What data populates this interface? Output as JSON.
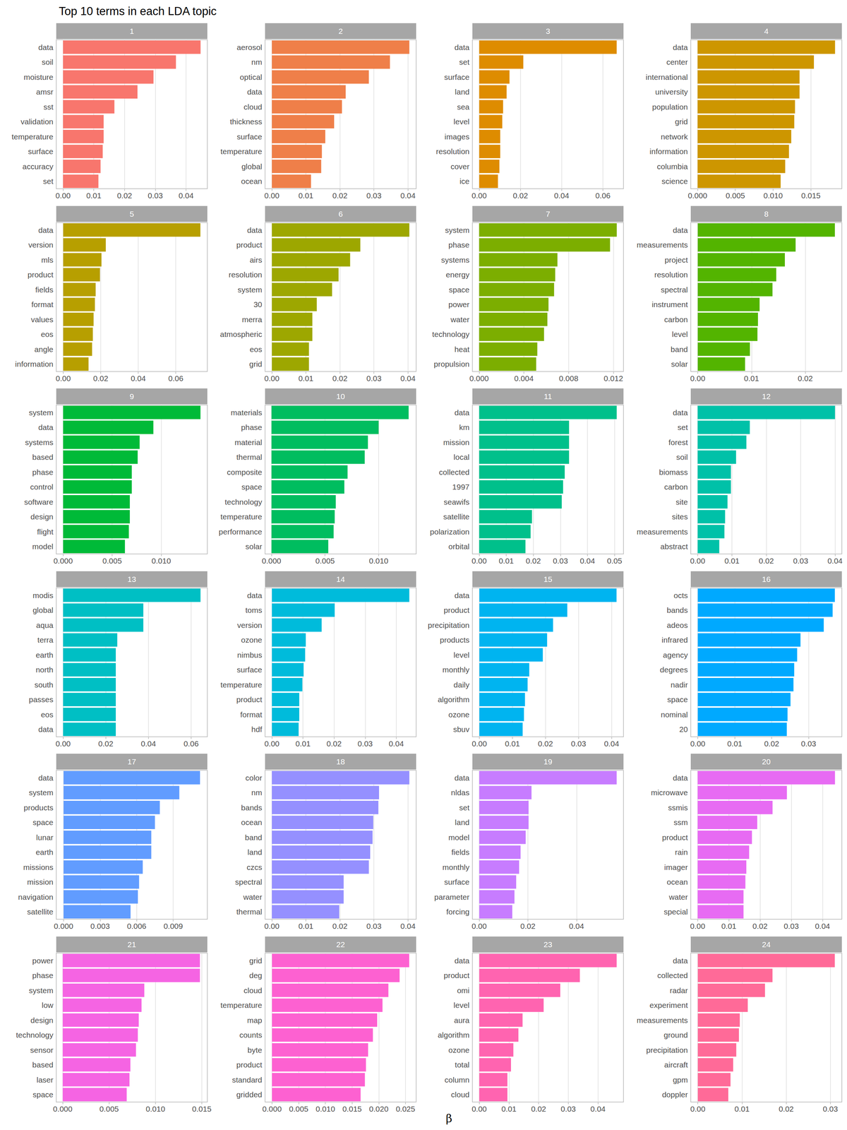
{
  "chart_data": {
    "type": "bar",
    "title": "Top 10 terms in each LDA topic",
    "x_label": "β",
    "orientation": "horizontal",
    "grid": true,
    "panels": [
      {
        "title": "1",
        "color": "#F8766D",
        "categories": [
          "data",
          "soil",
          "moisture",
          "amsr",
          "sst",
          "validation",
          "temperature",
          "surface",
          "accuracy",
          "set"
        ],
        "values": [
          0.0447,
          0.0367,
          0.0294,
          0.0242,
          0.0167,
          0.0132,
          0.0132,
          0.0129,
          0.0122,
          0.0115
        ],
        "xlim": [
          -0.0022,
          0.0469
        ],
        "xticks": [
          {
            "value": 0,
            "label": "0.00"
          },
          0.01,
          0.02,
          0.03,
          0.04
        ]
      },
      {
        "title": "2",
        "color": "#EF7F49",
        "categories": [
          "aerosol",
          "nm",
          "optical",
          "data",
          "cloud",
          "thickness",
          "surface",
          "temperature",
          "global",
          "ocean"
        ],
        "values": [
          0.0404,
          0.0347,
          0.0285,
          0.0217,
          0.0206,
          0.0183,
          0.0157,
          0.0147,
          0.0145,
          0.0115
        ],
        "xlim": [
          -0.002,
          0.0424
        ],
        "xticks": [
          {
            "value": 0,
            "label": "0.00"
          },
          0.01,
          0.02,
          0.03,
          0.04
        ]
      },
      {
        "title": "3",
        "color": "#DE8C00",
        "categories": [
          "data",
          "set",
          "surface",
          "land",
          "sea",
          "level",
          "images",
          "resolution",
          "cover",
          "ice"
        ],
        "values": [
          0.0667,
          0.0214,
          0.0147,
          0.0133,
          0.0116,
          0.0112,
          0.0102,
          0.0102,
          0.0098,
          0.0091
        ],
        "xlim": [
          -0.0033,
          0.07
        ],
        "xticks": [
          {
            "value": 0,
            "label": "0.00"
          },
          0.02,
          0.04,
          0.06
        ]
      },
      {
        "title": "4",
        "color": "#CD9600",
        "categories": [
          "data",
          "center",
          "international",
          "university",
          "population",
          "grid",
          "network",
          "information",
          "columbia",
          "science"
        ],
        "values": [
          0.0182,
          0.0154,
          0.0135,
          0.0135,
          0.0129,
          0.0128,
          0.0124,
          0.0121,
          0.0116,
          0.011
        ],
        "xlim": [
          -0.0009,
          0.0191
        ],
        "xticks": [
          {
            "value": 0,
            "label": "0.000"
          },
          0.005,
          {
            "value": 0.01,
            "label": "0.010"
          },
          0.015
        ]
      },
      {
        "title": "5",
        "color": "#B79F00",
        "categories": [
          "data",
          "version",
          "mls",
          "product",
          "fields",
          "format",
          "values",
          "eos",
          "angle",
          "information"
        ],
        "values": [
          0.0731,
          0.0227,
          0.0204,
          0.0196,
          0.0173,
          0.0169,
          0.0162,
          0.0158,
          0.0154,
          0.0135
        ],
        "xlim": [
          -0.0037,
          0.0768
        ],
        "xticks": [
          {
            "value": 0,
            "label": "0.00"
          },
          0.02,
          0.04,
          0.06
        ]
      },
      {
        "title": "6",
        "color": "#9DA700",
        "categories": [
          "data",
          "product",
          "airs",
          "resolution",
          "system",
          "30",
          "merra",
          "atmospheric",
          "eos",
          "grid"
        ],
        "values": [
          0.0404,
          0.026,
          0.023,
          0.0196,
          0.0177,
          0.0132,
          0.0119,
          0.0119,
          0.0109,
          0.0109
        ],
        "xlim": [
          -0.002,
          0.0424
        ],
        "xticks": [
          {
            "value": 0,
            "label": "0.00"
          },
          0.01,
          0.02,
          0.03,
          0.04
        ]
      },
      {
        "title": "7",
        "color": "#7CAE00",
        "categories": [
          "system",
          "phase",
          "systems",
          "energy",
          "space",
          "power",
          "water",
          "technology",
          "heat",
          "propulsion"
        ],
        "values": [
          0.0123,
          0.0117,
          0.007,
          0.0068,
          0.0067,
          0.0062,
          0.0061,
          0.0058,
          0.0052,
          0.0051
        ],
        "xlim": [
          -0.0006,
          0.0129
        ],
        "xticks": [
          {
            "value": 0,
            "label": "0.000"
          },
          0.004,
          0.008,
          0.012
        ]
      },
      {
        "title": "8",
        "color": "#53B400",
        "categories": [
          "data",
          "measurements",
          "project",
          "resolution",
          "spectral",
          "instrument",
          "carbon",
          "level",
          "band",
          "solar"
        ],
        "values": [
          0.0255,
          0.0182,
          0.0162,
          0.0146,
          0.0139,
          0.0115,
          0.0112,
          0.0111,
          0.0097,
          0.0088
        ],
        "xlim": [
          -0.0013,
          0.0268
        ],
        "xticks": [
          {
            "value": 0,
            "label": "0.00"
          },
          0.01,
          0.02
        ]
      },
      {
        "title": "9",
        "color": "#00BA38",
        "categories": [
          "system",
          "data",
          "systems",
          "based",
          "phase",
          "control",
          "software",
          "design",
          "flight",
          "model"
        ],
        "values": [
          0.014,
          0.0092,
          0.0078,
          0.0076,
          0.007,
          0.007,
          0.0068,
          0.0068,
          0.0067,
          0.0063
        ],
        "xlim": [
          -0.0007,
          0.0147
        ],
        "xticks": [
          {
            "value": 0,
            "label": "0.000"
          },
          0.005,
          {
            "value": 0.01,
            "label": "0.010"
          }
        ]
      },
      {
        "title": "10",
        "color": "#00BD5F",
        "categories": [
          "materials",
          "phase",
          "material",
          "thermal",
          "composite",
          "space",
          "technology",
          "temperature",
          "performance",
          "solar"
        ],
        "values": [
          0.0128,
          0.01,
          0.009,
          0.0087,
          0.0071,
          0.0068,
          0.006,
          0.0059,
          0.0058,
          0.0053
        ],
        "xlim": [
          -0.0006,
          0.0135
        ],
        "xticks": [
          {
            "value": 0,
            "label": "0.000"
          },
          0.005,
          {
            "value": 0.01,
            "label": "0.010"
          }
        ]
      },
      {
        "title": "11",
        "color": "#00C08B",
        "categories": [
          "data",
          "km",
          "mission",
          "local",
          "collected",
          "1997",
          "seawifs",
          "satellite",
          "polarization",
          "orbital"
        ],
        "values": [
          0.0508,
          0.0332,
          0.0332,
          0.0332,
          0.0316,
          0.031,
          0.0305,
          0.0195,
          0.019,
          0.0171
        ],
        "xlim": [
          -0.0025,
          0.0533
        ],
        "xticks": [
          {
            "value": 0,
            "label": "0.00"
          },
          0.01,
          0.02,
          0.03,
          0.04,
          0.05
        ]
      },
      {
        "title": "12",
        "color": "#00C1A8",
        "categories": [
          "data",
          "set",
          "forest",
          "soil",
          "biomass",
          "carbon",
          "site",
          "sites",
          "measurements",
          "abstract"
        ],
        "values": [
          0.04,
          0.0152,
          0.0142,
          0.0112,
          0.0097,
          0.0097,
          0.0087,
          0.008,
          0.0078,
          0.0063
        ],
        "xlim": [
          -0.002,
          0.042
        ],
        "xticks": [
          {
            "value": 0,
            "label": "0.00"
          },
          0.01,
          0.02,
          0.03,
          0.04
        ]
      },
      {
        "title": "13",
        "color": "#00BFC4",
        "categories": [
          "modis",
          "global",
          "aqua",
          "terra",
          "earth",
          "north",
          "south",
          "passes",
          "eos",
          "data"
        ],
        "values": [
          0.0644,
          0.0376,
          0.0376,
          0.0254,
          0.0247,
          0.0247,
          0.0247,
          0.0247,
          0.0247,
          0.0247
        ],
        "xlim": [
          -0.0032,
          0.0676
        ],
        "xticks": [
          {
            "value": 0,
            "label": "0.00"
          },
          0.02,
          0.04,
          0.06
        ]
      },
      {
        "title": "14",
        "color": "#00BBDB",
        "categories": [
          "data",
          "toms",
          "version",
          "ozone",
          "nimbus",
          "surface",
          "temperature",
          "product",
          "format",
          "hdf"
        ],
        "values": [
          0.0442,
          0.0202,
          0.016,
          0.0109,
          0.0107,
          0.0102,
          0.0098,
          0.0088,
          0.0088,
          0.0086
        ],
        "xlim": [
          -0.0022,
          0.0464
        ],
        "xticks": [
          {
            "value": 0,
            "label": "0.00"
          },
          0.01,
          0.02,
          0.03,
          0.04
        ]
      },
      {
        "title": "15",
        "color": "#00B4F0",
        "categories": [
          "data",
          "product",
          "precipitation",
          "products",
          "level",
          "monthly",
          "daily",
          "algorithm",
          "ozone",
          "sbuv"
        ],
        "values": [
          0.0415,
          0.0266,
          0.0223,
          0.0205,
          0.0192,
          0.0151,
          0.0146,
          0.0138,
          0.0135,
          0.0131
        ],
        "xlim": [
          -0.0021,
          0.0436
        ],
        "xticks": [
          {
            "value": 0,
            "label": "0.00"
          },
          0.01,
          0.02,
          0.03,
          0.04
        ]
      },
      {
        "title": "16",
        "color": "#00A9FF",
        "categories": [
          "octs",
          "bands",
          "adeos",
          "infrared",
          "agency",
          "degrees",
          "nadir",
          "space",
          "nominal",
          "20"
        ],
        "values": [
          0.0371,
          0.0365,
          0.0341,
          0.0278,
          0.0269,
          0.0261,
          0.0259,
          0.0251,
          0.0243,
          0.0241
        ],
        "xlim": [
          -0.0019,
          0.039
        ],
        "xticks": [
          {
            "value": 0,
            "label": "0.00"
          },
          0.01,
          0.02,
          0.03
        ]
      },
      {
        "title": "17",
        "color": "#619CFF",
        "categories": [
          "data",
          "system",
          "products",
          "space",
          "lunar",
          "earth",
          "missions",
          "mission",
          "navigation",
          "satellite"
        ],
        "values": [
          0.0112,
          0.0095,
          0.0079,
          0.0075,
          0.0072,
          0.0072,
          0.0065,
          0.0062,
          0.0061,
          0.0055
        ],
        "xlim": [
          -0.0006,
          0.0118
        ],
        "xticks": [
          {
            "value": 0,
            "label": "0.000"
          },
          0.003,
          0.006,
          0.009
        ]
      },
      {
        "title": "18",
        "color": "#9590FF",
        "categories": [
          "color",
          "nm",
          "bands",
          "ocean",
          "band",
          "land",
          "czcs",
          "spectral",
          "water",
          "thermal"
        ],
        "values": [
          0.0404,
          0.0315,
          0.0313,
          0.0298,
          0.0296,
          0.0289,
          0.0285,
          0.0211,
          0.0211,
          0.0198
        ],
        "xlim": [
          -0.002,
          0.0424
        ],
        "xticks": [
          {
            "value": 0,
            "label": "0.00"
          },
          0.01,
          0.02,
          0.03,
          0.04
        ]
      },
      {
        "title": "19",
        "color": "#C77CFF",
        "categories": [
          "data",
          "nldas",
          "set",
          "land",
          "model",
          "fields",
          "monthly",
          "surface",
          "parameter",
          "forcing"
        ],
        "values": [
          0.0565,
          0.0215,
          0.0203,
          0.0203,
          0.0191,
          0.017,
          0.0164,
          0.0152,
          0.0145,
          0.0136
        ],
        "xlim": [
          -0.0028,
          0.0593
        ],
        "xticks": [
          {
            "value": 0,
            "label": "0.00"
          },
          0.02,
          0.04
        ]
      },
      {
        "title": "20",
        "color": "#E76BF3",
        "categories": [
          "data",
          "microwave",
          "ssmis",
          "ssm",
          "product",
          "rain",
          "imager",
          "ocean",
          "water",
          "special"
        ],
        "values": [
          0.044,
          0.0286,
          0.024,
          0.0191,
          0.0174,
          0.0165,
          0.0156,
          0.0153,
          0.0147,
          0.0147
        ],
        "xlim": [
          -0.0022,
          0.0462
        ],
        "xticks": [
          {
            "value": 0,
            "label": "0.00"
          },
          0.01,
          0.02,
          0.03,
          0.04
        ]
      },
      {
        "title": "21",
        "color": "#F564E3",
        "categories": [
          "power",
          "phase",
          "system",
          "low",
          "design",
          "technology",
          "sensor",
          "based",
          "laser",
          "space"
        ],
        "values": [
          0.0148,
          0.0148,
          0.0088,
          0.0085,
          0.0082,
          0.0081,
          0.0079,
          0.0073,
          0.0072,
          0.0069
        ],
        "xlim": [
          -0.0007,
          0.0156
        ],
        "xticks": [
          {
            "value": 0,
            "label": "0.000"
          },
          0.005,
          {
            "value": 0.01,
            "label": "0.010"
          },
          0.015
        ]
      },
      {
        "title": "22",
        "color": "#FD61D1",
        "categories": [
          "grid",
          "deg",
          "cloud",
          "temperature",
          "map",
          "counts",
          "byte",
          "product",
          "standard",
          "gridded"
        ],
        "values": [
          0.0257,
          0.0239,
          0.0218,
          0.0207,
          0.0197,
          0.0189,
          0.018,
          0.0176,
          0.0174,
          0.0166
        ],
        "xlim": [
          -0.0013,
          0.027
        ],
        "xticks": [
          {
            "value": 0,
            "label": "0.000"
          },
          0.005,
          {
            "value": 0.01,
            "label": "0.010"
          },
          0.015,
          {
            "value": 0.02,
            "label": "0.020"
          },
          0.025
        ]
      },
      {
        "title": "23",
        "color": "#FF64B0",
        "categories": [
          "data",
          "product",
          "omi",
          "level",
          "aura",
          "algorithm",
          "ozone",
          "total",
          "column",
          "cloud"
        ],
        "values": [
          0.0463,
          0.0339,
          0.0273,
          0.0217,
          0.0146,
          0.0132,
          0.0115,
          0.0107,
          0.0095,
          0.0095
        ],
        "xlim": [
          -0.0023,
          0.0486
        ],
        "xticks": [
          {
            "value": 0,
            "label": "0.00"
          },
          0.01,
          0.02,
          0.03,
          0.04
        ]
      },
      {
        "title": "24",
        "color": "#FF6A98",
        "categories": [
          "data",
          "collected",
          "radar",
          "experiment",
          "measurements",
          "ground",
          "precipitation",
          "aircraft",
          "gpm",
          "doppler"
        ],
        "values": [
          0.031,
          0.0169,
          0.0152,
          0.0113,
          0.0095,
          0.0093,
          0.0087,
          0.008,
          0.0074,
          0.0069
        ],
        "xlim": [
          -0.0016,
          0.0326
        ],
        "xticks": [
          {
            "value": 0,
            "label": "0.00"
          },
          0.01,
          0.02,
          0.03
        ]
      }
    ]
  }
}
